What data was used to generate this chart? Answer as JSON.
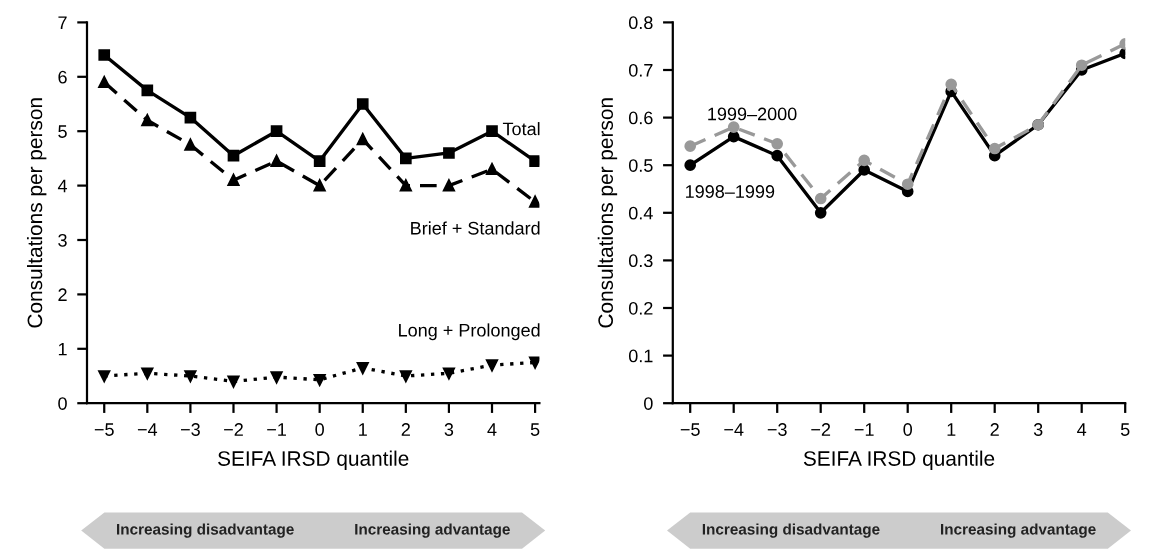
{
  "chart_data": [
    {
      "type": "line",
      "xlabel": "SEIFA IRSD quantile",
      "ylabel": "Consultations per person",
      "x": [
        -5,
        -4,
        -3,
        -2,
        -1,
        0,
        1,
        2,
        3,
        4,
        5
      ],
      "xlim": [
        -5.4,
        5.1
      ],
      "xticks": [
        {
          "value": -5,
          "label": "−5"
        },
        {
          "value": -4,
          "label": "−4"
        },
        {
          "value": -3,
          "label": "−3"
        },
        {
          "value": -2,
          "label": "−2"
        },
        {
          "value": -1,
          "label": "−1"
        },
        0,
        1,
        2,
        3,
        4,
        5
      ],
      "ylim": [
        0,
        7
      ],
      "yticks": [
        0,
        1,
        2,
        3,
        4,
        5,
        6,
        7
      ],
      "grid": false,
      "legend": false,
      "series": [
        {
          "name": "Total",
          "color": "#000000",
          "marker": "square",
          "line_style": "solid",
          "values": [
            6.4,
            5.75,
            5.25,
            4.55,
            5.0,
            4.45,
            5.5,
            4.5,
            4.6,
            5.0,
            4.45
          ]
        },
        {
          "name": "Brief + Standard",
          "color": "#000000",
          "marker": "triangle",
          "line_style": "dashed",
          "values": [
            5.9,
            5.2,
            4.75,
            4.1,
            4.45,
            4.0,
            4.85,
            4.0,
            4.0,
            4.3,
            3.7
          ]
        },
        {
          "name": "Long + Prolonged",
          "color": "#000000",
          "marker": "triangle_down",
          "line_style": "dotted",
          "values": [
            0.5,
            0.55,
            0.5,
            0.4,
            0.48,
            0.43,
            0.65,
            0.5,
            0.55,
            0.7,
            0.75
          ]
        }
      ],
      "annotations": [
        "Increasing disadvantage",
        "Increasing advantage"
      ]
    },
    {
      "type": "line",
      "xlabel": "SEIFA IRSD quantile",
      "ylabel": "Consultations per person",
      "x": [
        -5,
        -4,
        -3,
        -2,
        -1,
        0,
        1,
        2,
        3,
        4,
        5
      ],
      "xlim": [
        -5.4,
        5.0
      ],
      "xticks": [
        {
          "value": -5,
          "label": "−5"
        },
        {
          "value": -4,
          "label": "−4"
        },
        {
          "value": -3,
          "label": "−3"
        },
        {
          "value": -2,
          "label": "−2"
        },
        {
          "value": -1,
          "label": "−1"
        },
        0,
        1,
        2,
        3,
        4,
        5
      ],
      "ylim": [
        0,
        0.8
      ],
      "yticks": [
        0,
        0.1,
        0.2,
        0.3,
        0.4,
        0.5,
        0.6,
        0.7,
        0.8
      ],
      "grid": false,
      "legend": false,
      "series": [
        {
          "name": "1999–2000",
          "color": "#999999",
          "marker": "circle",
          "line_style": "dashed",
          "values": [
            0.54,
            0.58,
            0.545,
            0.43,
            0.51,
            0.46,
            0.67,
            0.535,
            0.585,
            0.71,
            0.755
          ]
        },
        {
          "name": "1998–1999",
          "color": "#000000",
          "marker": "circle",
          "line_style": "solid",
          "values": [
            0.5,
            0.56,
            0.52,
            0.4,
            0.49,
            0.445,
            0.655,
            0.52,
            0.585,
            0.7,
            0.735
          ]
        }
      ],
      "annotations": [
        "Increasing disadvantage",
        "Increasing advantage"
      ]
    }
  ]
}
